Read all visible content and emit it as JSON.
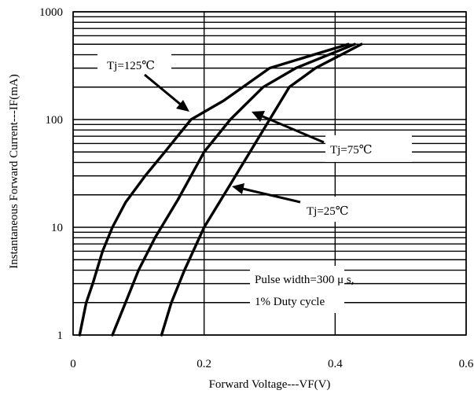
{
  "chart_data": {
    "type": "line",
    "xlabel": "Forward Voltage---VF(V)",
    "ylabel": "Instantaneous Forward Current---IF(mA)",
    "xlim": [
      0,
      0.6
    ],
    "ylim": [
      1,
      1000
    ],
    "yscale": "log",
    "grid": true,
    "x_ticks": [
      "0",
      "0.2",
      "0.4",
      "0.6"
    ],
    "y_ticks": [
      "1",
      "10",
      "100",
      "1000"
    ],
    "series": [
      {
        "name": "Tj=125℃",
        "points": [
          [
            0.01,
            1
          ],
          [
            0.02,
            2
          ],
          [
            0.03,
            3
          ],
          [
            0.045,
            6
          ],
          [
            0.06,
            10
          ],
          [
            0.08,
            17
          ],
          [
            0.11,
            30
          ],
          [
            0.14,
            50
          ],
          [
            0.18,
            100
          ],
          [
            0.23,
            150
          ],
          [
            0.3,
            300
          ],
          [
            0.42,
            500
          ]
        ]
      },
      {
        "name": "Tj=75℃",
        "points": [
          [
            0.06,
            1
          ],
          [
            0.08,
            2
          ],
          [
            0.1,
            4
          ],
          [
            0.125,
            8
          ],
          [
            0.16,
            18
          ],
          [
            0.2,
            50
          ],
          [
            0.24,
            100
          ],
          [
            0.29,
            200
          ],
          [
            0.34,
            300
          ],
          [
            0.43,
            500
          ]
        ]
      },
      {
        "name": "Tj=25℃",
        "points": [
          [
            0.135,
            1
          ],
          [
            0.15,
            2
          ],
          [
            0.17,
            4
          ],
          [
            0.2,
            10
          ],
          [
            0.24,
            25
          ],
          [
            0.27,
            50
          ],
          [
            0.3,
            100
          ],
          [
            0.33,
            200
          ],
          [
            0.37,
            300
          ],
          [
            0.44,
            500
          ]
        ]
      }
    ],
    "annotations": [
      {
        "text": "Tj=125℃",
        "points_to": [
          0.18,
          100
        ]
      },
      {
        "text": "Tj=75℃",
        "points_to": [
          0.27,
          100
        ]
      },
      {
        "text": "Tj=25℃",
        "points_to": [
          0.24,
          25
        ]
      }
    ],
    "note_lines": [
      "Pulse width=300 μ s,",
      "1% Duty cycle"
    ]
  }
}
